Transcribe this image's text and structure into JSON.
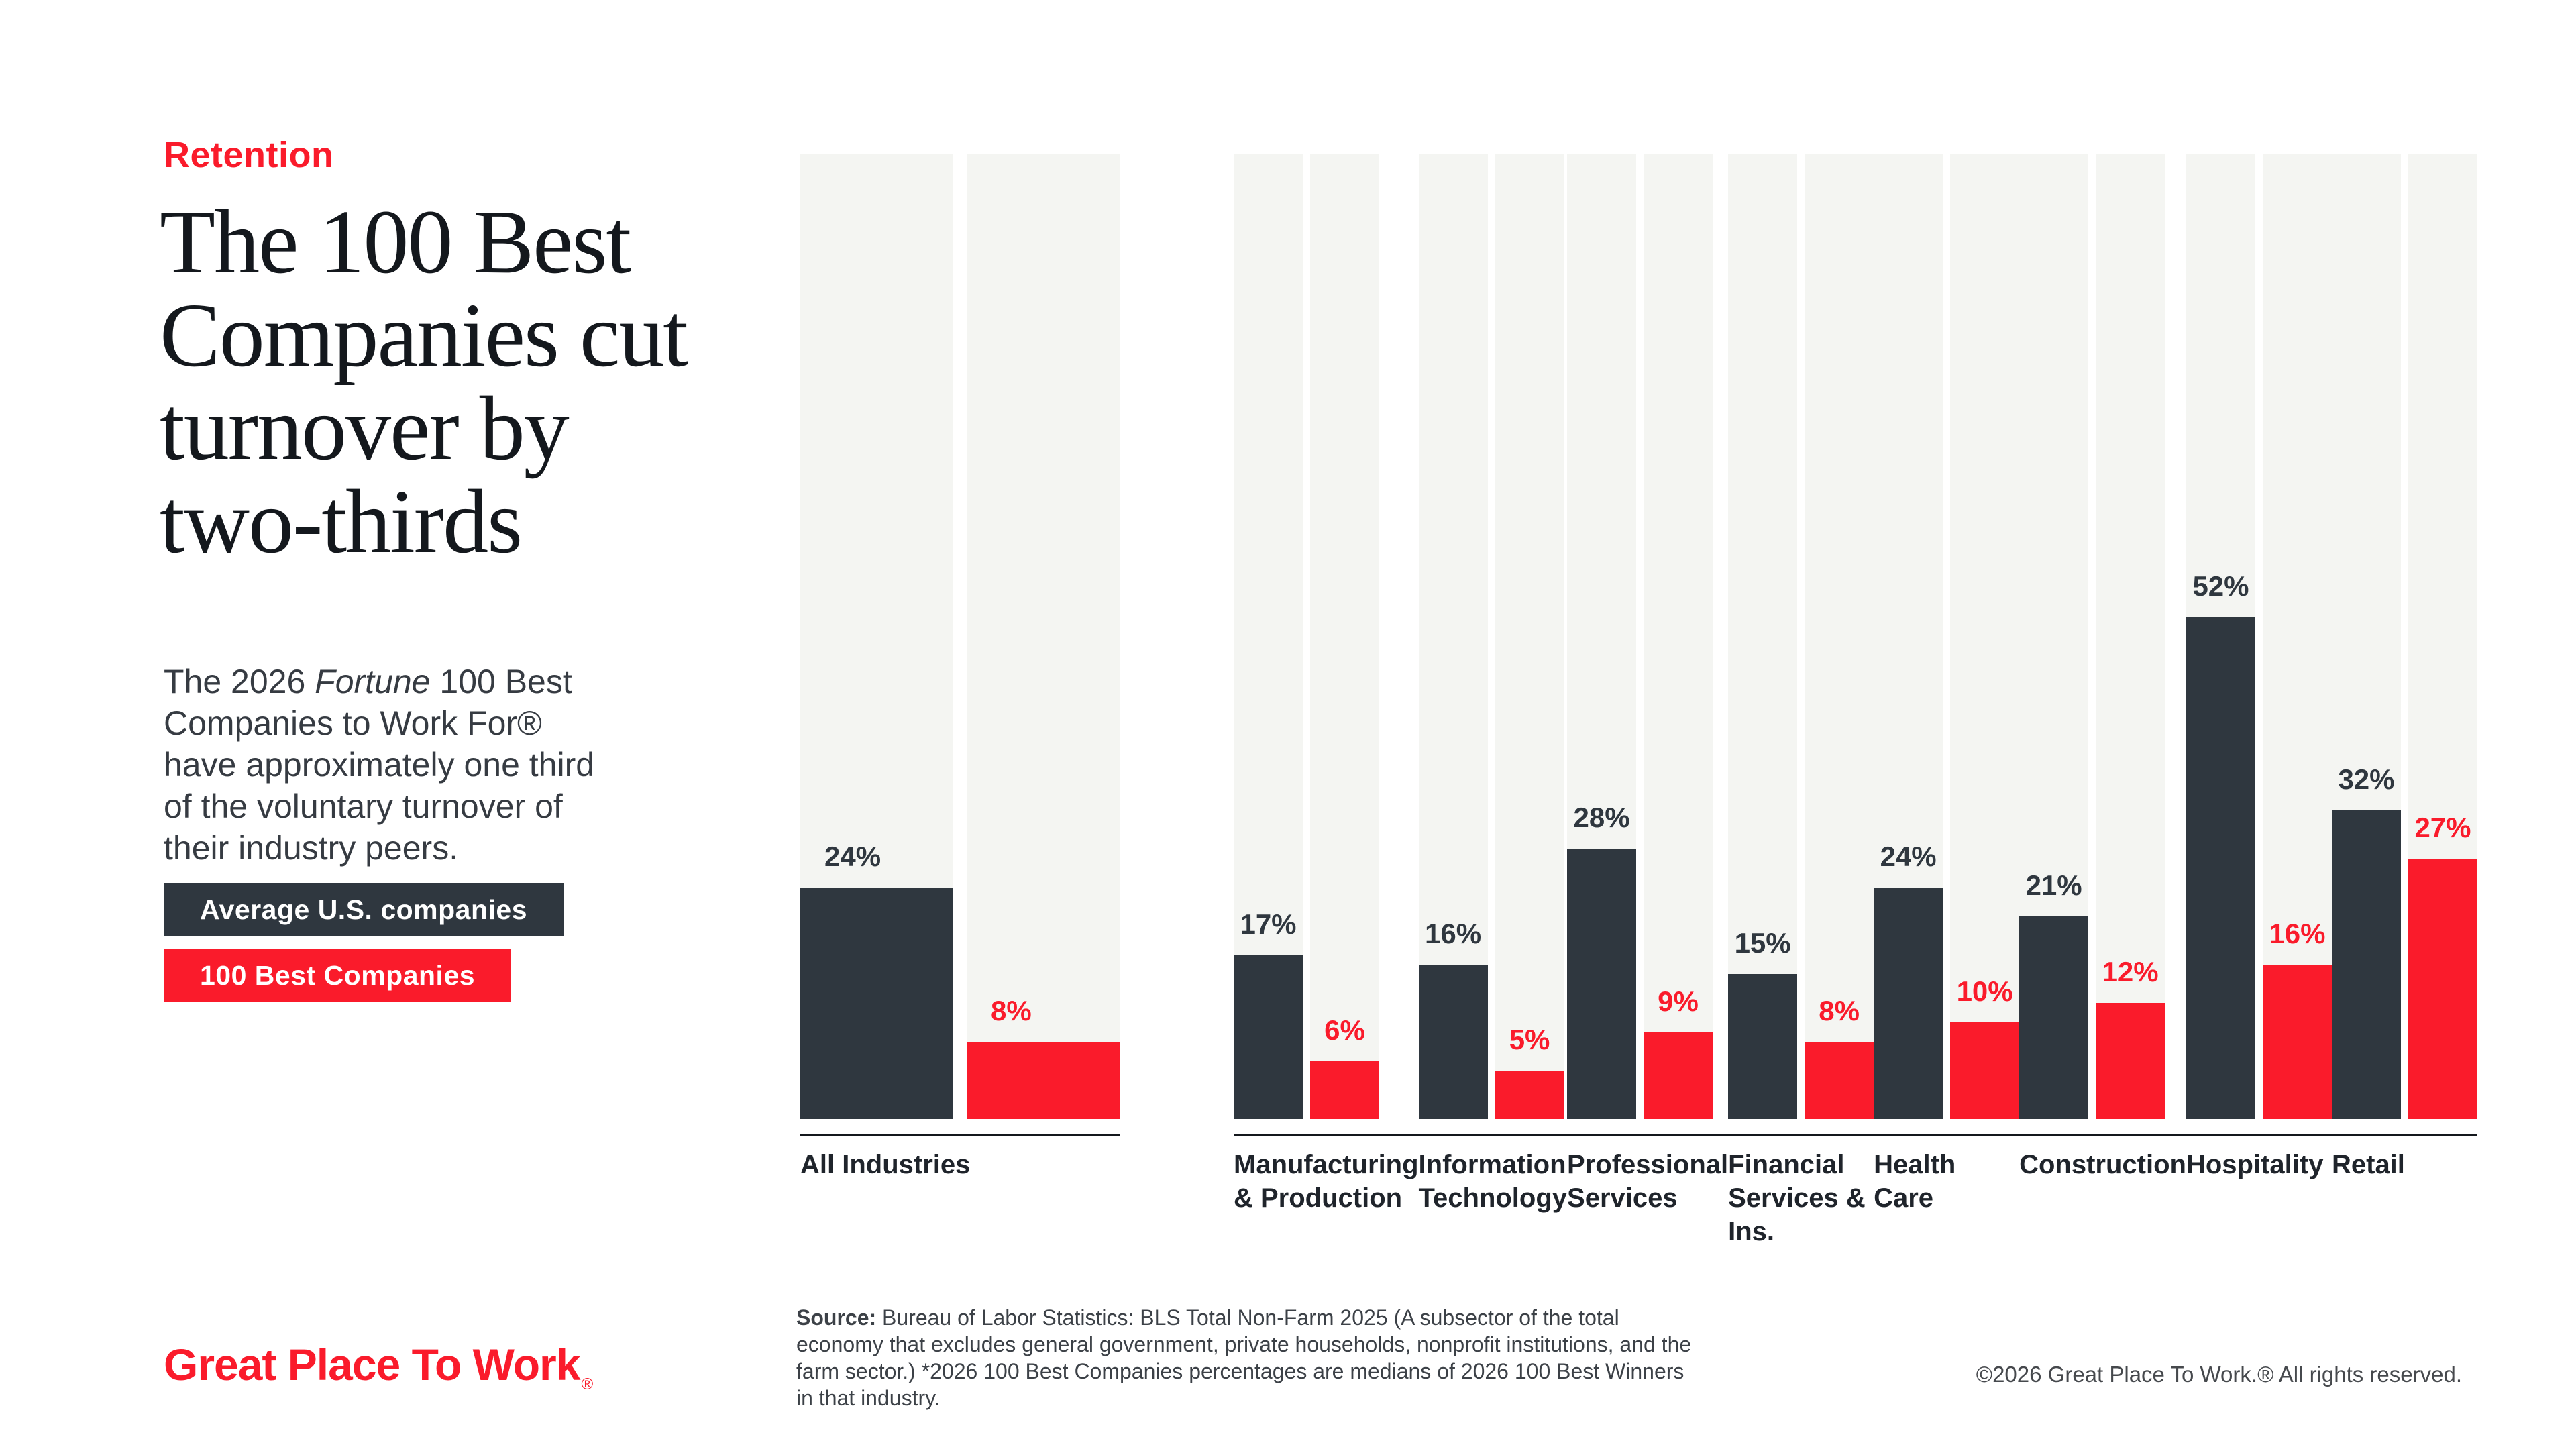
{
  "colors": {
    "brand_red": "#FA1B2B",
    "bar_dark": "#2F373F",
    "track_bg": "#F4F5F2",
    "ink": "#14181D",
    "page_bg": "#FFFFFF"
  },
  "header": {
    "eyebrow": "Retention",
    "title_lines": [
      "The 100 Best",
      "Companies cut",
      "turnover by",
      "two-thirds"
    ],
    "paragraph": {
      "line1_before": "The 2026 ",
      "line1_italic": "Fortune",
      "line1_after": " 100 Best",
      "lines": [
        "Companies to Work For®",
        "have approximately one third",
        "of the voluntary turnover of",
        "their industry peers."
      ]
    }
  },
  "legend": {
    "avg_label": "Average U.S. companies",
    "best_label": "100 Best Companies"
  },
  "chart_data": {
    "type": "bar",
    "unit": "%",
    "ylim": [
      0,
      100
    ],
    "grid": false,
    "legend_position": "left",
    "series": [
      {
        "name": "Average U.S. companies",
        "color": "#2F373F"
      },
      {
        "name": "100 Best Companies",
        "color": "#FA1B2B"
      }
    ],
    "groups": [
      {
        "label_lines": [
          "All Industries"
        ],
        "avg": 24,
        "best": 8,
        "wide": true
      },
      {
        "label_lines": [
          "Manufacturing",
          "& Production"
        ],
        "avg": 17,
        "best": 6
      },
      {
        "label_lines": [
          "Information",
          "Technology"
        ],
        "avg": 16,
        "best": 5
      },
      {
        "label_lines": [
          "Professional",
          "Services"
        ],
        "avg": 28,
        "best": 9
      },
      {
        "label_lines": [
          "Financial",
          "Services & Ins."
        ],
        "avg": 15,
        "best": 8
      },
      {
        "label_lines": [
          "Health Care"
        ],
        "avg": 24,
        "best": 10
      },
      {
        "label_lines": [
          "Construction"
        ],
        "avg": 21,
        "best": 12
      },
      {
        "label_lines": [
          "Hospitality"
        ],
        "avg": 52,
        "best": 16
      },
      {
        "label_lines": [
          "Retail"
        ],
        "avg": 32,
        "best": 27
      }
    ]
  },
  "footer": {
    "source_bold": "Source:",
    "source_text": " Bureau of Labor Statistics: BLS Total Non-Farm 2025 (A subsector of the total economy that excludes general government, private households, nonprofit institutions, and the farm sector.) *2026 100 Best Companies percentages are medians of 2026 100 Best Winners in that industry.",
    "logo_text": "Great Place To Work",
    "logo_reg": "®",
    "copyright": "©2026 Great Place To Work.® All rights reserved."
  }
}
